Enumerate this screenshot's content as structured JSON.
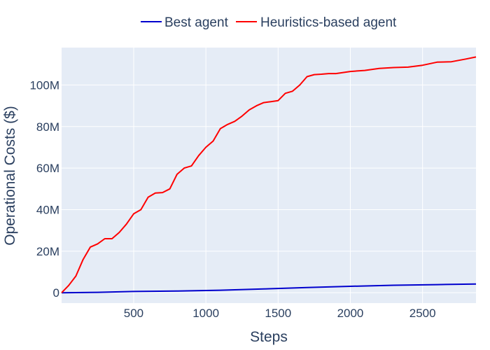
{
  "chart_data": {
    "type": "line",
    "xlabel": "Steps",
    "ylabel": "Operational Costs ($)",
    "xlim": [
      1,
      2870
    ],
    "ylim": [
      -5000000,
      118000000
    ],
    "x_ticks": [
      500,
      1000,
      1500,
      2000,
      2500
    ],
    "x_tick_labels": [
      "500",
      "1000",
      "1500",
      "2000",
      "2500"
    ],
    "y_ticks": [
      0,
      20000000,
      40000000,
      60000000,
      80000000,
      100000000
    ],
    "y_tick_labels": [
      "0",
      "20M",
      "40M",
      "60M",
      "80M",
      "100M"
    ],
    "grid": true,
    "legend_position": "top-center",
    "plot_background": "#e5ecf6",
    "series": [
      {
        "name": "Best agent",
        "color": "#0000cd",
        "x": [
          1,
          250,
          500,
          800,
          1100,
          1400,
          1700,
          2000,
          2300,
          2600,
          2870
        ],
        "y": [
          0,
          200000,
          600000,
          800000,
          1200000,
          1800000,
          2500000,
          3100000,
          3600000,
          3900000,
          4200000
        ]
      },
      {
        "name": "Heuristics-based agent",
        "color": "#ff0000",
        "x": [
          1,
          50,
          100,
          150,
          200,
          250,
          300,
          350,
          400,
          450,
          500,
          550,
          600,
          650,
          700,
          750,
          800,
          850,
          900,
          950,
          1000,
          1050,
          1100,
          1150,
          1200,
          1250,
          1300,
          1350,
          1400,
          1450,
          1500,
          1550,
          1600,
          1650,
          1700,
          1750,
          1800,
          1850,
          1900,
          1950,
          2000,
          2100,
          2200,
          2300,
          2400,
          2500,
          2600,
          2700,
          2800,
          2870
        ],
        "y": [
          0,
          3500000,
          8000000,
          16000000,
          22000000,
          23500000,
          26000000,
          26000000,
          29000000,
          33000000,
          38000000,
          40000000,
          46000000,
          48000000,
          48200000,
          50000000,
          57000000,
          60000000,
          61000000,
          66000000,
          70000000,
          73000000,
          79000000,
          81000000,
          82500000,
          85000000,
          88000000,
          90000000,
          91500000,
          92000000,
          92500000,
          96000000,
          97000000,
          100000000,
          104000000,
          105000000,
          105200000,
          105500000,
          105500000,
          106000000,
          106500000,
          107000000,
          108000000,
          108400000,
          108600000,
          109500000,
          111000000,
          111200000,
          112500000,
          113500000
        ]
      }
    ]
  }
}
